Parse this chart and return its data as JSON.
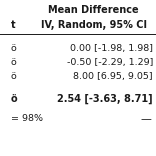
{
  "title_line1": "Mean Difference",
  "title_line2": "IV, Random, 95% CI",
  "header_left": "t",
  "rows": [
    {
      "left": "ö",
      "text": "  0.00 [-1.98, 1.98]"
    },
    {
      "left": "ö",
      "text": "-0.50 [-2.29, 1.29]"
    },
    {
      "left": "ö",
      "text": "  8.00 [6.95, 9.05]"
    }
  ],
  "summary_left": "ö",
  "summary_text": "2.54 [-3.63, 8.71]",
  "footer_text": "= 98%",
  "bg_color": "#ffffff",
  "text_color": "#1a1a1a",
  "title_fontsize": 7.0,
  "body_fontsize": 6.8,
  "summary_fontsize": 7.0
}
